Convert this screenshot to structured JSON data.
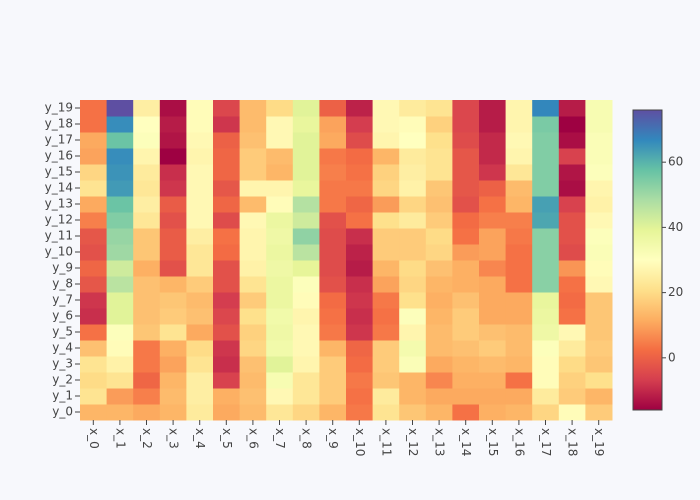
{
  "chart_data": {
    "type": "heatmap",
    "x": [
      "x_0",
      "x_1",
      "x_2",
      "x_3",
      "x_4",
      "x_5",
      "x_6",
      "x_7",
      "x_8",
      "x_9",
      "x_10",
      "x_11",
      "x_12",
      "x_13",
      "x_14",
      "x_15",
      "x_16",
      "x_17",
      "x_18",
      "x_19"
    ],
    "y": [
      "y_0",
      "y_1",
      "y_2",
      "y_3",
      "y_4",
      "y_5",
      "y_6",
      "y_7",
      "y_8",
      "y_9",
      "y_10",
      "y_11",
      "y_12",
      "y_13",
      "y_14",
      "y_15",
      "y_16",
      "y_17",
      "y_18",
      "y_19"
    ],
    "z": [
      [
        13,
        13,
        11,
        13,
        24,
        11,
        14,
        23,
        19,
        13,
        4,
        22,
        16,
        13,
        3,
        12,
        13,
        19,
        29,
        17
      ],
      [
        22,
        9,
        5,
        14,
        25,
        12,
        15,
        28,
        23,
        17,
        3,
        24,
        13,
        11,
        11,
        11,
        11,
        24,
        17,
        13
      ],
      [
        20,
        22,
        1,
        13,
        25,
        -6,
        14,
        33,
        23,
        17,
        4,
        16,
        13,
        6,
        12,
        12,
        3,
        29,
        18,
        21
      ],
      [
        22,
        26,
        4,
        10,
        22,
        -9,
        15,
        40,
        27,
        17,
        2,
        17,
        32,
        11,
        13,
        14,
        13,
        29,
        20,
        16
      ],
      [
        15,
        29,
        4,
        12,
        20,
        -8,
        19,
        35,
        28,
        13,
        1,
        17,
        34,
        14,
        15,
        17,
        14,
        31,
        24,
        17
      ],
      [
        3,
        31,
        16,
        22,
        11,
        -3,
        18,
        36,
        28,
        4,
        -8,
        4,
        27,
        14,
        17,
        15,
        14,
        36,
        28,
        16
      ],
      [
        -9,
        40,
        15,
        17,
        15,
        -5,
        21,
        35,
        27,
        3,
        -9,
        3,
        31,
        13,
        17,
        11,
        11,
        37,
        3,
        16
      ],
      [
        -8,
        40,
        15,
        16,
        14,
        -7,
        17,
        37,
        29,
        2,
        -8,
        4,
        21,
        12,
        15,
        11,
        11,
        38,
        2,
        16
      ],
      [
        -2,
        46,
        15,
        13,
        17,
        -3,
        22,
        37,
        31,
        -3,
        -9,
        10,
        19,
        13,
        12,
        11,
        3,
        53,
        3,
        28
      ],
      [
        1,
        43,
        12,
        -3,
        23,
        -3,
        26,
        36,
        39,
        -4,
        -12,
        13,
        20,
        15,
        12,
        6,
        3,
        53,
        8,
        29
      ],
      [
        -3,
        50,
        16,
        -1,
        23,
        2,
        27,
        37,
        46,
        -4,
        -11,
        17,
        17,
        19,
        9,
        10,
        3,
        53,
        -4,
        32
      ],
      [
        -2,
        51,
        16,
        -1,
        25,
        3,
        27,
        36,
        52,
        -4,
        -9,
        17,
        17,
        20,
        3,
        10,
        4,
        53,
        -3,
        31
      ],
      [
        5,
        54,
        23,
        -3,
        28,
        -4,
        28,
        37,
        43,
        -3,
        3,
        21,
        24,
        17,
        2,
        5,
        5,
        62,
        -3,
        28
      ],
      [
        11,
        57,
        25,
        -1,
        28,
        1,
        14,
        29,
        47,
        4,
        1,
        9,
        19,
        15,
        -3,
        3,
        13,
        63,
        -6,
        26
      ],
      [
        22,
        64,
        23,
        -8,
        28,
        -2,
        27,
        27,
        38,
        4,
        4,
        19,
        26,
        16,
        -2,
        0,
        14,
        54,
        -14,
        27
      ],
      [
        19,
        65,
        24,
        -9,
        28,
        1,
        17,
        13,
        40,
        5,
        3,
        18,
        25,
        22,
        -2,
        -8,
        23,
        54,
        -13,
        31
      ],
      [
        10,
        66,
        27,
        -16,
        27,
        1,
        17,
        14,
        40,
        4,
        2,
        13,
        24,
        22,
        -2,
        -10,
        27,
        54,
        -6,
        32
      ],
      [
        11,
        57,
        31,
        -13,
        28,
        0,
        15,
        28,
        40,
        11,
        -4,
        27,
        30,
        21,
        -4,
        -10,
        28,
        54,
        -14,
        32
      ],
      [
        3,
        66,
        30,
        -12,
        29,
        -8,
        14,
        28,
        38,
        10,
        -7,
        28,
        29,
        18,
        -5,
        -12,
        27,
        55,
        -16,
        33
      ],
      [
        3,
        76,
        25,
        -14,
        29,
        -5,
        14,
        20,
        40,
        0,
        -11,
        28,
        24,
        22,
        -5,
        -12,
        27,
        67,
        -12,
        33
      ]
    ],
    "zlim": [
      -16,
      76
    ],
    "colorbar_ticks": [
      0,
      20,
      40,
      60
    ],
    "colorscale": [
      [
        0,
        "#9e0142"
      ],
      [
        0.1,
        "#d53e4f"
      ],
      [
        0.2,
        "#f46d43"
      ],
      [
        0.3,
        "#fdae61"
      ],
      [
        0.4,
        "#fee08b"
      ],
      [
        0.5,
        "#ffffbf"
      ],
      [
        0.6,
        "#e6f598"
      ],
      [
        0.7,
        "#abdda4"
      ],
      [
        0.8,
        "#66c2a5"
      ],
      [
        0.9,
        "#3288bd"
      ],
      [
        1,
        "#5e4fa2"
      ]
    ]
  }
}
